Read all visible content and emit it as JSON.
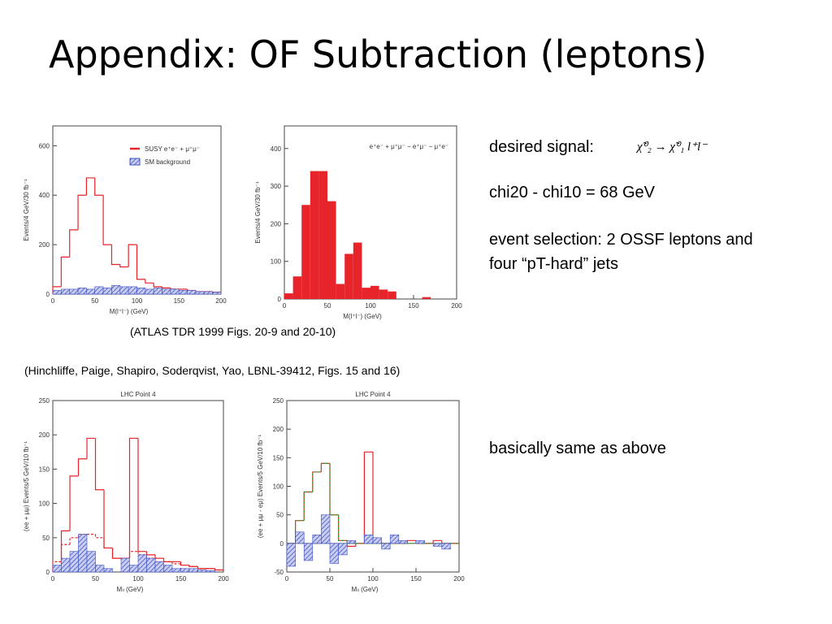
{
  "title": "Appendix:  OF Subtraction (leptons)",
  "captions": [
    "(ATLAS TDR 1999 Figs. 20-9 and 20-10)",
    "(Hinchliffe, Paige, Shapiro, Soderqvist, Yao, LBNL-39412, Figs. 15 and 16)"
  ],
  "notes": [
    "desired signal:",
    "χ̃⁰₂ → χ̃⁰₁ l⁺l⁻",
    "chi20 - chi10 = 68 GeV",
    "event selection:  2 OSSF leptons and four “pT-hard” jets",
    "basically same as above"
  ],
  "charts": [
    {
      "type": "histogram",
      "xlabel": "M(l⁺l⁻) (GeV)",
      "ylabel": "Events/4 GeV/30 fb⁻¹",
      "bins": [
        0,
        10,
        20,
        30,
        40,
        50,
        60,
        70,
        80,
        90,
        100,
        110,
        120,
        130,
        140,
        150,
        160,
        170,
        180,
        190,
        200
      ],
      "xlim": [
        0,
        200
      ],
      "xticks": [
        0,
        50,
        100,
        150,
        200
      ],
      "ylim": [
        0,
        680
      ],
      "yticks": [
        0,
        200,
        400,
        600
      ],
      "series": [
        {
          "name": "SUSY e⁺e⁻ + μ⁺μ⁻",
          "color": "#e8242b",
          "style": "line",
          "values": [
            30,
            150,
            260,
            400,
            470,
            400,
            200,
            120,
            110,
            200,
            60,
            45,
            30,
            25,
            20,
            20,
            15,
            10,
            10,
            8
          ]
        },
        {
          "name": "SM background",
          "color": "#3b4fc4",
          "style": "hatched",
          "values": [
            15,
            20,
            20,
            25,
            20,
            30,
            25,
            35,
            30,
            30,
            25,
            20,
            25,
            20,
            20,
            15,
            15,
            10,
            10,
            8
          ]
        }
      ]
    },
    {
      "type": "histogram",
      "xlabel": "M(l⁺l⁻) (GeV)",
      "ylabel": "Events/4 GeV/30 fb⁻¹",
      "annotation": "e⁺e⁻ + μ⁺μ⁻ − e⁺μ⁻ − μ⁺e⁻",
      "bins": [
        0,
        10,
        20,
        30,
        40,
        50,
        60,
        70,
        80,
        90,
        100,
        110,
        120,
        130,
        140,
        150,
        160,
        170,
        180,
        190,
        200
      ],
      "xlim": [
        0,
        200
      ],
      "xticks": [
        0,
        50,
        100,
        150,
        200
      ],
      "ylim": [
        0,
        460
      ],
      "yticks": [
        0,
        100,
        200,
        300,
        400
      ],
      "series": [
        {
          "color": "#e8242b",
          "style": "filled",
          "values": [
            15,
            60,
            250,
            340,
            340,
            260,
            40,
            120,
            150,
            30,
            35,
            25,
            20,
            0,
            0,
            0,
            5,
            0,
            0,
            0
          ]
        }
      ]
    },
    {
      "type": "histogram",
      "title": "LHC Point 4",
      "xlabel": "Mₗₗ (GeV)",
      "ylabel": "(ee + μμ) Events/5 GeV/10 fb⁻¹",
      "bins": [
        0,
        10,
        20,
        30,
        40,
        50,
        60,
        70,
        80,
        90,
        100,
        110,
        120,
        130,
        140,
        150,
        160,
        170,
        180,
        190,
        200
      ],
      "xlim": [
        0,
        200
      ],
      "xticks": [
        0,
        50,
        100,
        150,
        200
      ],
      "ylim": [
        0,
        250
      ],
      "yticks": [
        0,
        50,
        100,
        150,
        200,
        250
      ],
      "series": [
        {
          "color": "#e8242b",
          "style": "line",
          "values": [
            5,
            60,
            140,
            165,
            195,
            120,
            35,
            20,
            20,
            195,
            30,
            25,
            20,
            15,
            15,
            10,
            8,
            5,
            5,
            3
          ]
        },
        {
          "color": "#e8242b",
          "style": "dashed",
          "values": [
            15,
            40,
            50,
            55,
            55,
            50,
            35,
            20,
            20,
            30,
            25,
            20,
            15,
            15,
            12,
            10,
            8,
            5,
            5,
            3
          ]
        },
        {
          "color": "#3b4fc4",
          "style": "hatched",
          "values": [
            10,
            20,
            30,
            55,
            30,
            10,
            5,
            0,
            20,
            10,
            25,
            20,
            15,
            10,
            5,
            5,
            5,
            3,
            2,
            0
          ]
        }
      ]
    },
    {
      "type": "histogram",
      "title": "LHC Point 4",
      "xlabel": "Mₗₗ (GeV)",
      "ylabel": "(ee + μμ - eμ) Events/5 GeV/10 fb⁻¹",
      "bins": [
        0,
        10,
        20,
        30,
        40,
        50,
        60,
        70,
        80,
        90,
        100,
        110,
        120,
        130,
        140,
        150,
        160,
        170,
        180,
        190,
        200
      ],
      "xlim": [
        0,
        200
      ],
      "xticks": [
        0,
        50,
        100,
        150,
        200
      ],
      "ylim": [
        -50,
        250
      ],
      "yticks": [
        -50,
        0,
        50,
        100,
        150,
        200,
        250
      ],
      "series": [
        {
          "color": "#e8242b",
          "style": "line",
          "values": [
            0,
            40,
            90,
            125,
            140,
            50,
            5,
            -5,
            0,
            160,
            5,
            0,
            0,
            0,
            5,
            0,
            0,
            5,
            0,
            0
          ]
        },
        {
          "color": "#2aa02a",
          "style": "dashed",
          "values": [
            0,
            40,
            90,
            125,
            140,
            50,
            5,
            0,
            0,
            0,
            0,
            0,
            0,
            0,
            0,
            0,
            0,
            0,
            0,
            0
          ]
        },
        {
          "color": "#3b4fc4",
          "style": "hatched",
          "values": [
            -40,
            20,
            -30,
            15,
            50,
            -35,
            -20,
            5,
            0,
            15,
            10,
            -10,
            15,
            5,
            0,
            5,
            0,
            -5,
            -10,
            0
          ]
        }
      ]
    }
  ]
}
